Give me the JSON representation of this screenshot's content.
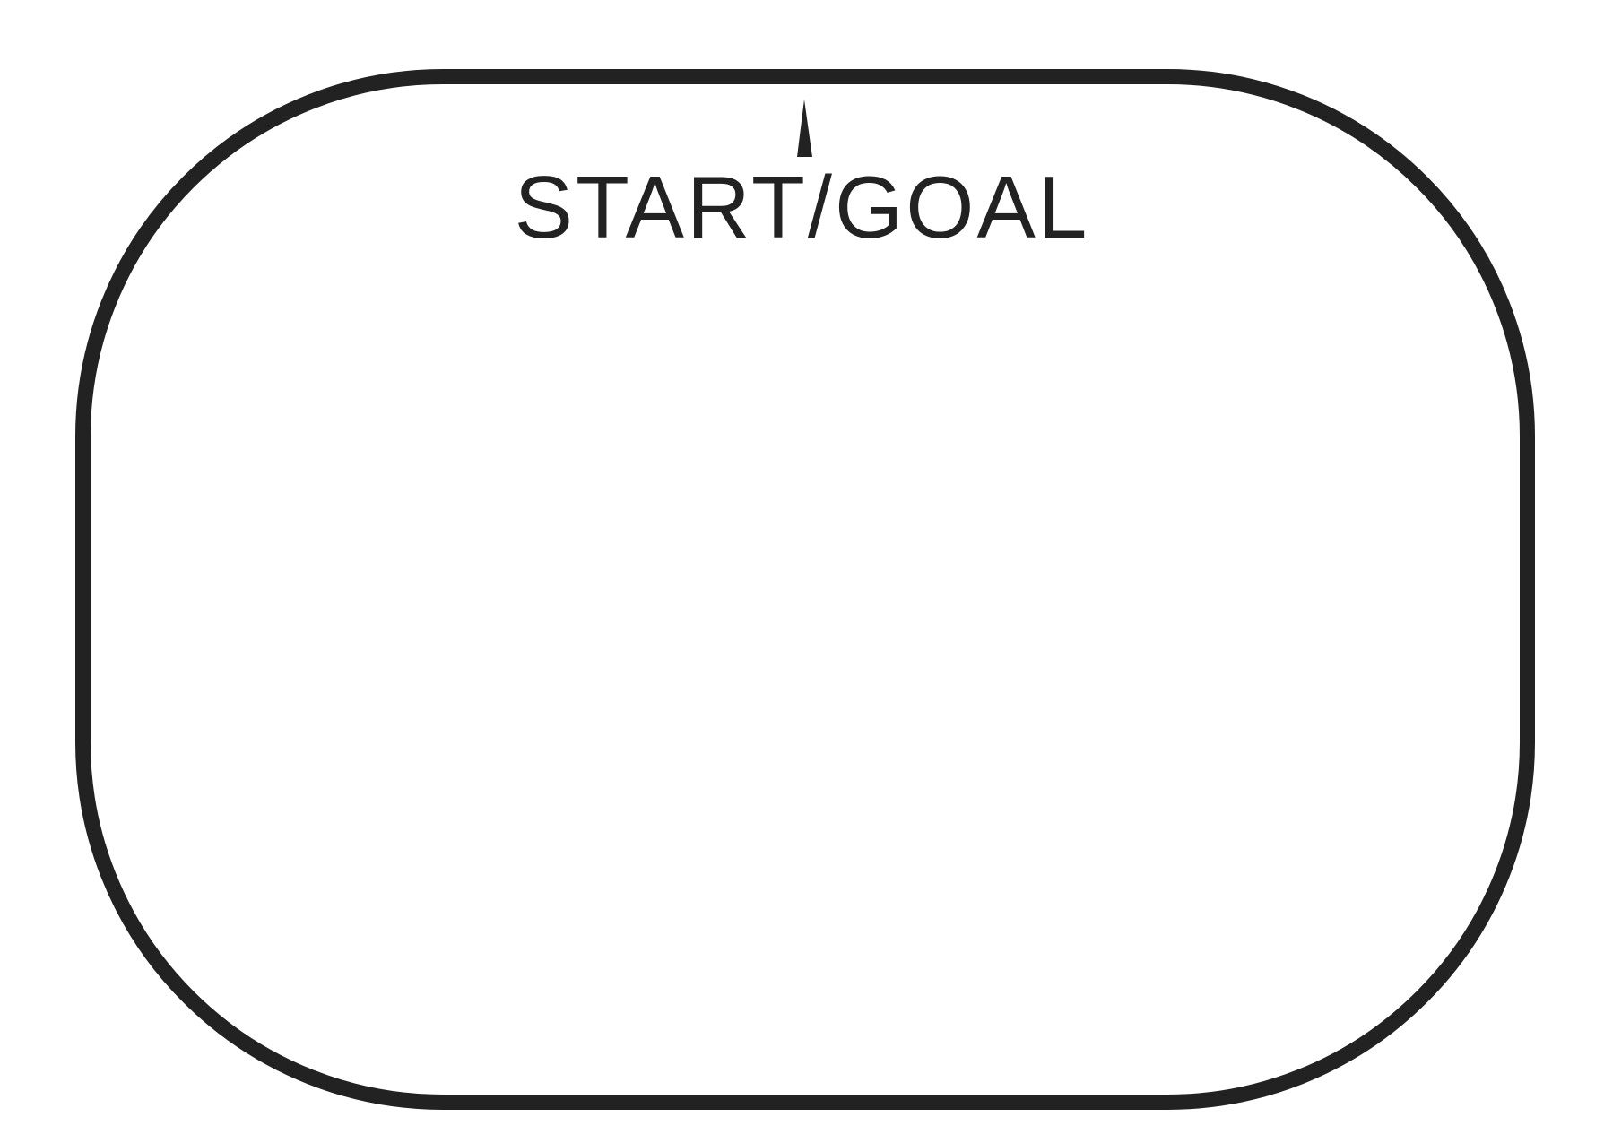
{
  "diagram": {
    "label": "START/GOAL",
    "line_color": "#222222",
    "background_color": "#ffffff",
    "shapes": {
      "track": "rounded-rectangle-loop",
      "marker": "triangle-start-marker"
    }
  }
}
